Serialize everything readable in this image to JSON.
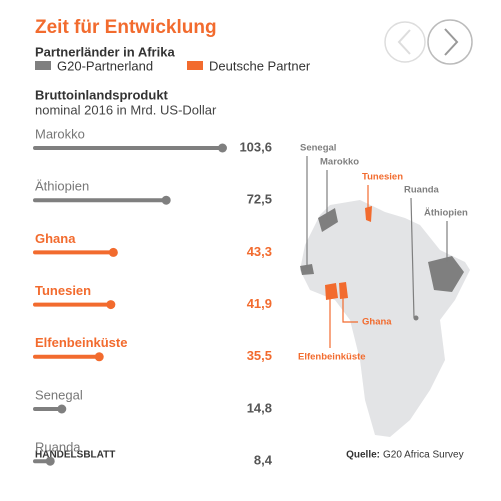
{
  "chart_data": {
    "type": "bar",
    "orientation": "horizontal",
    "title": "Zeit für Entwicklung",
    "subtitle": "Partnerländer in Afrika",
    "legend": [
      {
        "name": "G20-Partnerland",
        "color": "#7f7f7f"
      },
      {
        "name": "Deutsche Partner",
        "color": "#f26b2e"
      }
    ],
    "measure_title": "Bruttoinlandsprodukt",
    "measure_subtitle": "nominal 2016 in Mrd. US-Dollar",
    "categories": [
      "Marokko",
      "Äthiopien",
      "Ghana",
      "Tunesien",
      "Elfenbeinküste",
      "Senegal",
      "Ruanda"
    ],
    "values": [
      103.6,
      72.5,
      43.3,
      41.9,
      35.5,
      14.8,
      8.4
    ],
    "value_labels": [
      "103,6",
      "72,5",
      "43,3",
      "41,9",
      "35,5",
      "14,8",
      "8,4"
    ],
    "groups": [
      0,
      0,
      1,
      1,
      1,
      0,
      0
    ],
    "xlim": [
      0,
      105
    ],
    "map_labels": [
      {
        "text": "Senegal",
        "group": 0
      },
      {
        "text": "Marokko",
        "group": 0
      },
      {
        "text": "Tunesien",
        "group": 1
      },
      {
        "text": "Ruanda",
        "group": 0
      },
      {
        "text": "Äthiopien",
        "group": 0
      },
      {
        "text": "Ghana",
        "group": 1
      },
      {
        "text": "Elfenbeinküste",
        "group": 1
      }
    ],
    "publisher": "HANDELSBLATT",
    "source_label": "Quelle:",
    "source": "G20 Africa Survey"
  }
}
